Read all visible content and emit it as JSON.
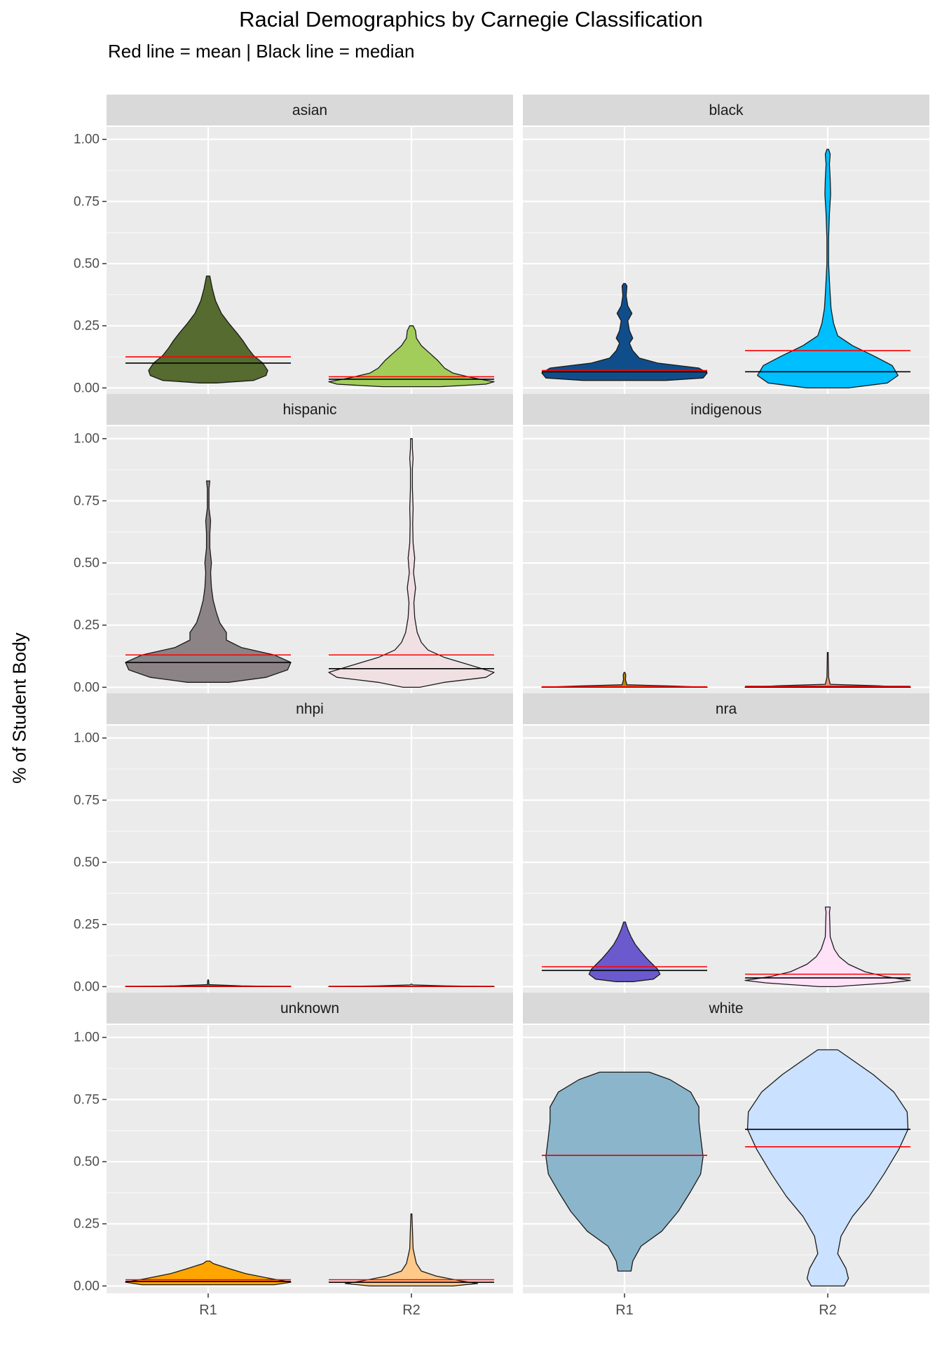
{
  "chart_data": {
    "type": "violin",
    "title": "Racial Demographics by Carnegie Classification",
    "subtitle": "Red line = mean | Black line = median",
    "ylabel": "% of Student Body",
    "xlabel": "",
    "categories": [
      "R1",
      "R2"
    ],
    "ylim": [
      -0.03,
      1.05
    ],
    "yticks": [
      "0.00",
      "0.25",
      "0.50",
      "0.75",
      "1.00"
    ],
    "yticks_values": [
      0,
      0.25,
      0.5,
      0.75,
      1.0
    ],
    "mean_line_color": "#FF0000",
    "median_line_color": "#000000",
    "panels": [
      {
        "label": "asian",
        "groups": [
          {
            "category": "R1",
            "fill": "#556B2F",
            "mean": 0.125,
            "median": 0.1,
            "profile": [
              [
                0.02,
                0.1
              ],
              [
                0.03,
                0.55
              ],
              [
                0.05,
                0.7
              ],
              [
                0.07,
                0.72
              ],
              [
                0.1,
                0.66
              ],
              [
                0.13,
                0.55
              ],
              [
                0.16,
                0.48
              ],
              [
                0.19,
                0.42
              ],
              [
                0.22,
                0.35
              ],
              [
                0.26,
                0.25
              ],
              [
                0.3,
                0.16
              ],
              [
                0.35,
                0.09
              ],
              [
                0.4,
                0.05
              ],
              [
                0.45,
                0.02
              ]
            ]
          },
          {
            "category": "R2",
            "fill": "#A2CD5A",
            "mean": 0.045,
            "median": 0.035,
            "profile": [
              [
                0.005,
                0.35
              ],
              [
                0.015,
                0.9
              ],
              [
                0.025,
                1.0
              ],
              [
                0.04,
                0.75
              ],
              [
                0.06,
                0.5
              ],
              [
                0.08,
                0.4
              ],
              [
                0.11,
                0.32
              ],
              [
                0.14,
                0.22
              ],
              [
                0.17,
                0.12
              ],
              [
                0.2,
                0.06
              ],
              [
                0.23,
                0.05
              ],
              [
                0.25,
                0.02
              ]
            ]
          }
        ]
      },
      {
        "label": "black",
        "groups": [
          {
            "category": "R1",
            "fill": "#104E8B",
            "mean": 0.07,
            "median": 0.065,
            "profile": [
              [
                0.03,
                0.5
              ],
              [
                0.04,
                0.95
              ],
              [
                0.06,
                1.0
              ],
              [
                0.08,
                0.9
              ],
              [
                0.1,
                0.4
              ],
              [
                0.12,
                0.18
              ],
              [
                0.15,
                0.1
              ],
              [
                0.18,
                0.06
              ],
              [
                0.2,
                0.1
              ],
              [
                0.23,
                0.06
              ],
              [
                0.27,
                0.04
              ],
              [
                0.3,
                0.09
              ],
              [
                0.33,
                0.04
              ],
              [
                0.37,
                0.02
              ],
              [
                0.41,
                0.03
              ],
              [
                0.42,
                0.01
              ]
            ]
          },
          {
            "category": "R2",
            "fill": "#00BFFF",
            "mean": 0.15,
            "median": 0.065,
            "profile": [
              [
                0.0,
                0.25
              ],
              [
                0.02,
                0.72
              ],
              [
                0.05,
                0.85
              ],
              [
                0.09,
                0.78
              ],
              [
                0.13,
                0.55
              ],
              [
                0.17,
                0.3
              ],
              [
                0.21,
                0.12
              ],
              [
                0.26,
                0.07
              ],
              [
                0.32,
                0.04
              ],
              [
                0.4,
                0.025
              ],
              [
                0.5,
                0.01
              ],
              [
                0.6,
                0.01
              ],
              [
                0.7,
                0.02
              ],
              [
                0.78,
                0.035
              ],
              [
                0.84,
                0.03
              ],
              [
                0.9,
                0.02
              ],
              [
                0.94,
                0.03
              ],
              [
                0.96,
                0.01
              ]
            ]
          }
        ]
      },
      {
        "label": "hispanic",
        "groups": [
          {
            "category": "R1",
            "fill": "#8B8386",
            "mean": 0.13,
            "median": 0.1,
            "profile": [
              [
                0.02,
                0.25
              ],
              [
                0.04,
                0.7
              ],
              [
                0.07,
                0.96
              ],
              [
                0.1,
                1.0
              ],
              [
                0.13,
                0.8
              ],
              [
                0.16,
                0.4
              ],
              [
                0.19,
                0.22
              ],
              [
                0.22,
                0.22
              ],
              [
                0.26,
                0.14
              ],
              [
                0.3,
                0.1
              ],
              [
                0.35,
                0.06
              ],
              [
                0.4,
                0.04
              ],
              [
                0.46,
                0.03
              ],
              [
                0.5,
                0.04
              ],
              [
                0.56,
                0.02
              ],
              [
                0.62,
                0.02
              ],
              [
                0.67,
                0.03
              ],
              [
                0.72,
                0.01
              ],
              [
                0.8,
                0.01
              ],
              [
                0.83,
                0.02
              ]
            ]
          },
          {
            "category": "R2",
            "fill": "#F0E0E4",
            "mean": 0.13,
            "median": 0.075,
            "profile": [
              [
                0.0,
                0.1
              ],
              [
                0.02,
                0.4
              ],
              [
                0.04,
                0.9
              ],
              [
                0.06,
                1.0
              ],
              [
                0.09,
                0.7
              ],
              [
                0.12,
                0.4
              ],
              [
                0.15,
                0.2
              ],
              [
                0.18,
                0.12
              ],
              [
                0.22,
                0.07
              ],
              [
                0.28,
                0.04
              ],
              [
                0.34,
                0.03
              ],
              [
                0.4,
                0.05
              ],
              [
                0.46,
                0.025
              ],
              [
                0.52,
                0.04
              ],
              [
                0.58,
                0.02
              ],
              [
                0.66,
                0.015
              ],
              [
                0.72,
                0.02
              ],
              [
                0.8,
                0.012
              ],
              [
                0.88,
                0.012
              ],
              [
                0.92,
                0.02
              ],
              [
                0.96,
                0.012
              ],
              [
                1.0,
                0.01
              ]
            ]
          }
        ]
      },
      {
        "label": "indigenous",
        "groups": [
          {
            "category": "R1",
            "fill": "#B8860B",
            "mean": 0.002,
            "median": 0.001,
            "profile": [
              [
                0.0,
                1.0
              ],
              [
                0.005,
                0.6
              ],
              [
                0.01,
                0.03
              ],
              [
                0.03,
                0.012
              ],
              [
                0.05,
                0.015
              ],
              [
                0.06,
                0.005
              ]
            ]
          },
          {
            "category": "R2",
            "fill": "#E9967A",
            "mean": 0.004,
            "median": 0.002,
            "profile": [
              [
                0.0,
                1.0
              ],
              [
                0.006,
                0.6
              ],
              [
                0.012,
                0.03
              ],
              [
                0.04,
                0.01
              ],
              [
                0.08,
                0.008
              ],
              [
                0.14,
                0.005
              ]
            ]
          }
        ]
      },
      {
        "label": "nhpi",
        "groups": [
          {
            "category": "R1",
            "fill": "#2E8B57",
            "mean": 0.001,
            "median": 0.001,
            "profile": [
              [
                0.0,
                1.0
              ],
              [
                0.003,
                0.4
              ],
              [
                0.008,
                0.01
              ],
              [
                0.018,
                0.008
              ],
              [
                0.027,
                0.004
              ]
            ]
          },
          {
            "category": "R2",
            "fill": "#98FB98",
            "mean": 0.001,
            "median": 0.001,
            "profile": [
              [
                0.0,
                1.0
              ],
              [
                0.003,
                0.4
              ],
              [
                0.007,
                0.015
              ],
              [
                0.01,
                0.003
              ]
            ]
          }
        ]
      },
      {
        "label": "nra",
        "groups": [
          {
            "category": "R1",
            "fill": "#6A5ACD",
            "mean": 0.08,
            "median": 0.065,
            "profile": [
              [
                0.02,
                0.1
              ],
              [
                0.03,
                0.35
              ],
              [
                0.05,
                0.43
              ],
              [
                0.07,
                0.4
              ],
              [
                0.09,
                0.34
              ],
              [
                0.11,
                0.28
              ],
              [
                0.14,
                0.2
              ],
              [
                0.17,
                0.13
              ],
              [
                0.2,
                0.08
              ],
              [
                0.23,
                0.04
              ],
              [
                0.26,
                0.01
              ]
            ]
          },
          {
            "category": "R2",
            "fill": "#FFE1F8",
            "mean": 0.05,
            "median": 0.035,
            "profile": [
              [
                0.0,
                0.1
              ],
              [
                0.015,
                0.75
              ],
              [
                0.025,
                1.0
              ],
              [
                0.04,
                0.7
              ],
              [
                0.06,
                0.45
              ],
              [
                0.09,
                0.25
              ],
              [
                0.12,
                0.14
              ],
              [
                0.15,
                0.08
              ],
              [
                0.2,
                0.03
              ],
              [
                0.25,
                0.025
              ],
              [
                0.3,
                0.02
              ],
              [
                0.32,
                0.03
              ]
            ]
          }
        ]
      },
      {
        "label": "unknown",
        "groups": [
          {
            "category": "R1",
            "fill": "#FFA500",
            "mean": 0.025,
            "median": 0.018,
            "profile": [
              [
                0.005,
                0.8
              ],
              [
                0.015,
                1.0
              ],
              [
                0.03,
                0.75
              ],
              [
                0.05,
                0.45
              ],
              [
                0.07,
                0.25
              ],
              [
                0.09,
                0.06
              ],
              [
                0.1,
                0.02
              ]
            ]
          },
          {
            "category": "R2",
            "fill": "#FFC989",
            "mean": 0.025,
            "median": 0.015,
            "profile": [
              [
                0.0,
                0.5
              ],
              [
                0.01,
                0.8
              ],
              [
                0.02,
                0.6
              ],
              [
                0.04,
                0.3
              ],
              [
                0.06,
                0.12
              ],
              [
                0.09,
                0.06
              ],
              [
                0.12,
                0.04
              ],
              [
                0.15,
                0.02
              ],
              [
                0.2,
                0.015
              ],
              [
                0.25,
                0.01
              ],
              [
                0.29,
                0.006
              ]
            ]
          }
        ]
      },
      {
        "label": "white",
        "groups": [
          {
            "category": "R1",
            "fill": "#8BB5CB",
            "mean": 0.525,
            "median": 0.525,
            "profile": [
              [
                0.06,
                0.08
              ],
              [
                0.1,
                0.1
              ],
              [
                0.16,
                0.2
              ],
              [
                0.22,
                0.45
              ],
              [
                0.3,
                0.65
              ],
              [
                0.38,
                0.8
              ],
              [
                0.45,
                0.92
              ],
              [
                0.52,
                0.95
              ],
              [
                0.6,
                0.92
              ],
              [
                0.66,
                0.9
              ],
              [
                0.72,
                0.9
              ],
              [
                0.78,
                0.8
              ],
              [
                0.83,
                0.55
              ],
              [
                0.86,
                0.3
              ]
            ]
          },
          {
            "category": "R2",
            "fill": "#CAE1FF",
            "mean": 0.56,
            "median": 0.63,
            "profile": [
              [
                0.0,
                0.2
              ],
              [
                0.03,
                0.25
              ],
              [
                0.07,
                0.22
              ],
              [
                0.13,
                0.12
              ],
              [
                0.2,
                0.16
              ],
              [
                0.28,
                0.3
              ],
              [
                0.36,
                0.5
              ],
              [
                0.45,
                0.68
              ],
              [
                0.55,
                0.86
              ],
              [
                0.63,
                0.97
              ],
              [
                0.7,
                0.96
              ],
              [
                0.78,
                0.8
              ],
              [
                0.85,
                0.55
              ],
              [
                0.92,
                0.25
              ],
              [
                0.95,
                0.12
              ]
            ]
          }
        ]
      }
    ]
  }
}
